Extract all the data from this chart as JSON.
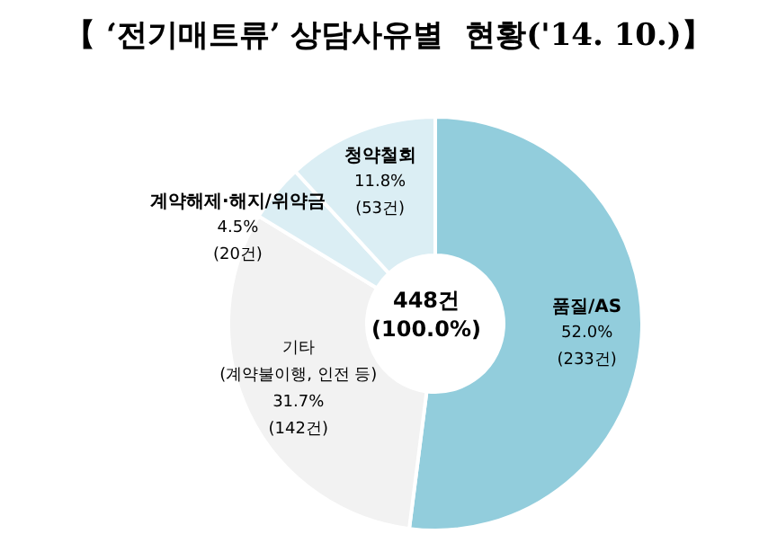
{
  "chart_data": {
    "type": "donut",
    "title": "【 ‘전기매트류’ 상담사유별  현황('14. 10.)】",
    "categories": [
      "품질/AS",
      "기타\n(계약불이행, 인전 등)",
      "계약해제·해지/위약금",
      "청약철회"
    ],
    "values": [
      233,
      142,
      20,
      53
    ],
    "value_labels": [
      "52.0%\n(233건)",
      "31.7%\n(142건)",
      "4.5%\n(20건)",
      "11.8%\n(53건)"
    ],
    "colors": [
      "#92cddc",
      "#f2f2f2",
      "#dbeef4",
      "#dbeef4"
    ],
    "annotations": [
      "448건",
      "(100.0%)"
    ],
    "legend": false
  }
}
